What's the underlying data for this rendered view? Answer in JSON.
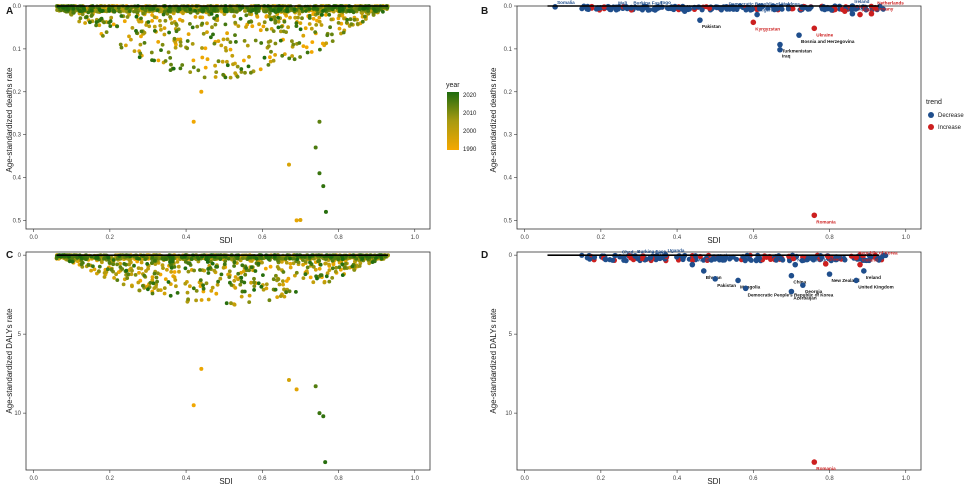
{
  "colors": {
    "decrease": "#1f4e8c",
    "increase": "#cc1f1f",
    "year_low": "#f5a800",
    "year_mid": "#a89a10",
    "year_high": "#1e6b0e",
    "fit_line": "#000000",
    "axis": "#333333"
  },
  "chart_data": [
    {
      "panel": "A",
      "type": "scatter",
      "xlabel": "SDI",
      "ylabel": "Age-standardized deaths rate",
      "xlim": [
        -0.02,
        1.04
      ],
      "ylim": [
        0,
        0.52
      ],
      "y_reversed": true,
      "xticks": [
        "0.0",
        "0.2",
        "0.4",
        "0.6",
        "0.8",
        "1.0"
      ],
      "yticks": [
        "0.0",
        "0.1",
        "0.2",
        "0.3",
        "0.4",
        "0.5"
      ],
      "grid": false,
      "color_by": "year",
      "legend": {
        "title": "year",
        "position": "right",
        "ticks": [
          "2020",
          "2010",
          "2000",
          "1990"
        ],
        "range": [
          1990,
          2021
        ]
      },
      "fit_line": [
        [
          0.06,
          0.0
        ],
        [
          0.93,
          0.0
        ]
      ],
      "highlight_points": [
        {
          "x": 0.69,
          "y": 0.5,
          "year": 1993
        },
        {
          "x": 0.7,
          "y": 0.499,
          "year": 1995
        },
        {
          "x": 0.767,
          "y": 0.48,
          "year": 2020
        },
        {
          "x": 0.76,
          "y": 0.42,
          "year": 2019
        },
        {
          "x": 0.75,
          "y": 0.39,
          "year": 2018
        },
        {
          "x": 0.74,
          "y": 0.33,
          "year": 2016
        },
        {
          "x": 0.75,
          "y": 0.27,
          "year": 2014
        },
        {
          "x": 0.42,
          "y": 0.27,
          "year": 1991
        },
        {
          "x": 0.44,
          "y": 0.2,
          "year": 1992
        },
        {
          "x": 0.67,
          "y": 0.37,
          "year": 1996
        }
      ]
    },
    {
      "panel": "B",
      "type": "scatter",
      "xlabel": "SDI",
      "ylabel": "Age-standardized deaths rate",
      "xlim": [
        -0.02,
        1.04
      ],
      "ylim": [
        0,
        0.52
      ],
      "y_reversed": true,
      "xticks": [
        "0.0",
        "0.2",
        "0.4",
        "0.6",
        "0.8",
        "1.0"
      ],
      "yticks": [
        "0.0",
        "0.1",
        "0.2",
        "0.3",
        "0.4",
        "0.5"
      ],
      "grid": false,
      "legend": {
        "title": "trend",
        "position": "right",
        "entries": [
          "Decrease",
          "Increase"
        ]
      },
      "fit_line": [
        [
          0.06,
          0.0
        ],
        [
          0.93,
          0.0
        ]
      ],
      "points": [
        {
          "label": "Somalia",
          "x": 0.08,
          "y": 0.002,
          "trend": "Decrease"
        },
        {
          "label": "Mali",
          "x": 0.24,
          "y": 0.003,
          "trend": "Decrease"
        },
        {
          "label": "Burkina Faso",
          "x": 0.28,
          "y": 0.004,
          "trend": "Decrease"
        },
        {
          "label": "Togo",
          "x": 0.35,
          "y": 0.002,
          "trend": "Decrease"
        },
        {
          "label": "Nepal",
          "x": 0.42,
          "y": 0.012,
          "trend": "Decrease"
        },
        {
          "label": "Pakistan",
          "x": 0.46,
          "y": 0.033,
          "trend": "Decrease"
        },
        {
          "label": "Democratic Republic of Moldova",
          "x": 0.53,
          "y": 0.006,
          "trend": "Decrease"
        },
        {
          "label": "Algeria",
          "x": 0.61,
          "y": 0.02,
          "trend": "Decrease"
        },
        {
          "label": "Kyrgyzstan",
          "x": 0.6,
          "y": 0.038,
          "trend": "Increase"
        },
        {
          "label": "Ukraine",
          "x": 0.76,
          "y": 0.052,
          "trend": "Increase"
        },
        {
          "label": "Bosnia and Herzegovina",
          "x": 0.72,
          "y": 0.068,
          "trend": "Decrease"
        },
        {
          "label": "Turkmenistan",
          "x": 0.67,
          "y": 0.09,
          "trend": "Decrease"
        },
        {
          "label": "Iraq",
          "x": 0.67,
          "y": 0.102,
          "trend": "Decrease"
        },
        {
          "label": "Austria",
          "x": 0.84,
          "y": 0.012,
          "trend": "Increase"
        },
        {
          "label": "Ireland",
          "x": 0.86,
          "y": 0.0,
          "trend": "Decrease"
        },
        {
          "label": "Andorra",
          "x": 0.86,
          "y": 0.018,
          "trend": "Decrease"
        },
        {
          "label": "Albania",
          "x": 0.88,
          "y": 0.02,
          "trend": "Increase"
        },
        {
          "label": "Netherlands",
          "x": 0.92,
          "y": 0.004,
          "trend": "Increase"
        },
        {
          "label": "Germany",
          "x": 0.91,
          "y": 0.018,
          "trend": "Increase"
        },
        {
          "label": "Romania",
          "x": 0.76,
          "y": 0.488,
          "trend": "Increase"
        }
      ]
    },
    {
      "panel": "C",
      "type": "scatter",
      "xlabel": "SDI",
      "ylabel": "Age-standardized DALYs rate",
      "xlim": [
        -0.02,
        1.04
      ],
      "ylim": [
        -0.2,
        13.6
      ],
      "y_reversed": true,
      "xticks": [
        "0.0",
        "0.2",
        "0.4",
        "0.6",
        "0.8",
        "1.0"
      ],
      "yticks": [
        "0",
        "5",
        "10"
      ],
      "grid": false,
      "color_by": "year",
      "fit_line": [
        [
          0.06,
          0.0
        ],
        [
          0.93,
          0.0
        ]
      ],
      "highlight_points": [
        {
          "x": 0.765,
          "y": 13.1,
          "year": 2020
        },
        {
          "x": 0.76,
          "y": 10.2,
          "year": 2019
        },
        {
          "x": 0.75,
          "y": 10.0,
          "year": 2018
        },
        {
          "x": 0.42,
          "y": 9.5,
          "year": 1991
        },
        {
          "x": 0.69,
          "y": 8.5,
          "year": 1994
        },
        {
          "x": 0.74,
          "y": 8.3,
          "year": 2015
        },
        {
          "x": 0.44,
          "y": 7.2,
          "year": 1992
        },
        {
          "x": 0.67,
          "y": 7.9,
          "year": 1997
        }
      ]
    },
    {
      "panel": "D",
      "type": "scatter",
      "xlabel": "SDI",
      "ylabel": "Age-standardized DALYs rate",
      "xlim": [
        -0.02,
        1.04
      ],
      "ylim": [
        -0.2,
        13.6
      ],
      "y_reversed": true,
      "xticks": [
        "0.0",
        "0.2",
        "0.4",
        "0.6",
        "0.8",
        "1.0"
      ],
      "yticks": [
        "0",
        "5",
        "10"
      ],
      "grid": false,
      "fit_line": [
        [
          0.06,
          0.0
        ],
        [
          0.93,
          0.0
        ]
      ],
      "points": [
        {
          "label": "Chad",
          "x": 0.25,
          "y": 0.1,
          "trend": "Decrease"
        },
        {
          "label": "Burkina Faso",
          "x": 0.29,
          "y": 0.05,
          "trend": "Decrease"
        },
        {
          "label": "Liberia",
          "x": 0.33,
          "y": 0.15,
          "trend": "Decrease"
        },
        {
          "label": "Uganda",
          "x": 0.37,
          "y": 0.0,
          "trend": "Decrease"
        },
        {
          "label": "Rwanda",
          "x": 0.44,
          "y": 0.6,
          "trend": "Decrease"
        },
        {
          "label": "Lesotho",
          "x": 0.49,
          "y": 0.3,
          "trend": "Decrease"
        },
        {
          "label": "Bhutan",
          "x": 0.47,
          "y": 1.0,
          "trend": "Decrease"
        },
        {
          "label": "Pakistan",
          "x": 0.5,
          "y": 1.5,
          "trend": "Decrease"
        },
        {
          "label": "Mongolia",
          "x": 0.56,
          "y": 1.6,
          "trend": "Decrease"
        },
        {
          "label": "Democratic People's Republic of Korea",
          "x": 0.58,
          "y": 2.1,
          "trend": "Decrease"
        },
        {
          "label": "North Macedonia",
          "x": 0.71,
          "y": 0.6,
          "trend": "Decrease"
        },
        {
          "label": "Greece",
          "x": 0.79,
          "y": 0.55,
          "trend": "Increase"
        },
        {
          "label": "China",
          "x": 0.7,
          "y": 1.3,
          "trend": "Decrease"
        },
        {
          "label": "Georgia",
          "x": 0.73,
          "y": 1.9,
          "trend": "Decrease"
        },
        {
          "label": "Azerbaijan",
          "x": 0.7,
          "y": 2.3,
          "trend": "Decrease"
        },
        {
          "label": "New Zealand",
          "x": 0.8,
          "y": 1.2,
          "trend": "Decrease"
        },
        {
          "label": "Republic of Korea",
          "x": 0.87,
          "y": 0.15,
          "trend": "Increase"
        },
        {
          "label": "Iceland",
          "x": 0.88,
          "y": 0.6,
          "trend": "Increase"
        },
        {
          "label": "Ireland",
          "x": 0.89,
          "y": 1.0,
          "trend": "Decrease"
        },
        {
          "label": "United Kingdom",
          "x": 0.87,
          "y": 1.6,
          "trend": "Decrease"
        },
        {
          "label": "Romania",
          "x": 0.76,
          "y": 13.1,
          "trend": "Increase"
        }
      ]
    }
  ],
  "panels": {
    "A": {
      "tag": "A",
      "xlabel": "SDI",
      "ylabel": "Age-standardized deaths rate",
      "yticks": [
        "0.0",
        "0.1",
        "0.2",
        "0.3",
        "0.4",
        "0.5"
      ]
    },
    "B": {
      "tag": "B",
      "xlabel": "SDI",
      "ylabel": "Age-standardized deaths rate",
      "yticks": [
        "0.0",
        "0.1",
        "0.2",
        "0.3",
        "0.4",
        "0.5"
      ]
    },
    "C": {
      "tag": "C",
      "xlabel": "SDI",
      "ylabel": "Age-standardized DALYs rate",
      "yticks": [
        "0",
        "5",
        "10"
      ]
    },
    "D": {
      "tag": "D",
      "xlabel": "SDI",
      "ylabel": "Age-standardized DALYs rate",
      "yticks": [
        "0",
        "5",
        "10"
      ]
    }
  },
  "xticks": [
    "0.0",
    "0.2",
    "0.4",
    "0.6",
    "0.8",
    "1.0"
  ],
  "legends": {
    "year": {
      "title": "year",
      "ticks": [
        "2020",
        "2010",
        "2000",
        "1990"
      ]
    },
    "trend": {
      "title": "trend",
      "entries": [
        "Decrease",
        "Increase"
      ]
    }
  }
}
